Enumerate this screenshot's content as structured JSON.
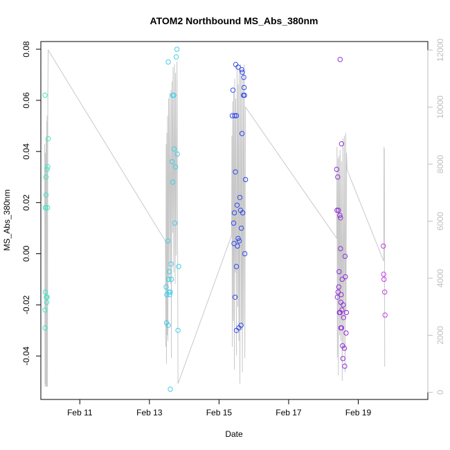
{
  "chart_data": {
    "type": "scatter",
    "title": "ATOM2 Northbound MS_Abs_380nm",
    "xlabel": "Date",
    "ylabel": "MS_Abs_380nm",
    "x_unit": "days (Feb)",
    "xlim": [
      9.88,
      21.0
    ],
    "ylim": [
      -0.057,
      0.083
    ],
    "right_ylim": [
      -250,
      12300
    ],
    "x_ticks": [
      {
        "value": 11,
        "label": "Feb 11"
      },
      {
        "value": 13,
        "label": "Feb 13"
      },
      {
        "value": 15,
        "label": "Feb 15"
      },
      {
        "value": 17,
        "label": "Feb 17"
      },
      {
        "value": 19,
        "label": "Feb 19"
      }
    ],
    "y_ticks": [
      {
        "value": -0.04,
        "label": "-0.04"
      },
      {
        "value": -0.02,
        "label": "-0.02"
      },
      {
        "value": 0.0,
        "label": "0.00"
      },
      {
        "value": 0.02,
        "label": "0.02"
      },
      {
        "value": 0.04,
        "label": "0.04"
      },
      {
        "value": 0.06,
        "label": "0.06"
      },
      {
        "value": 0.08,
        "label": "0.08"
      }
    ],
    "right_ticks": [
      {
        "value": 0,
        "label": "0"
      },
      {
        "value": 2000,
        "label": "2000"
      },
      {
        "value": 4000,
        "label": "4000"
      },
      {
        "value": 6000,
        "label": "6000"
      },
      {
        "value": 8000,
        "label": "8000"
      },
      {
        "value": 10000,
        "label": "10000"
      },
      {
        "value": 12000,
        "label": "12000"
      }
    ],
    "colors": {
      "g1": "#3be6c2",
      "g2": "#3ccfea",
      "g3": "#2f48ea",
      "g4": "#8f2fd8",
      "g5": "#c83ae6",
      "line": "#c8c8c8"
    },
    "series": [
      {
        "color_key": "g1",
        "points": [
          [
            10.0,
            0.062
          ],
          [
            10.0,
            -0.029
          ],
          [
            10.0,
            -0.022
          ],
          [
            10.01,
            0.018
          ],
          [
            10.01,
            -0.015
          ],
          [
            10.03,
            0.023
          ],
          [
            10.03,
            0.03
          ],
          [
            10.04,
            -0.017
          ],
          [
            10.05,
            -0.019
          ],
          [
            10.06,
            0.033
          ],
          [
            10.06,
            -0.017
          ],
          [
            10.07,
            0.018
          ],
          [
            10.08,
            0.034
          ],
          [
            10.09,
            0.045
          ],
          [
            10.02,
            0.018
          ]
        ]
      },
      {
        "color_key": "g2",
        "points": [
          [
            13.48,
            -0.013
          ],
          [
            13.49,
            -0.027
          ],
          [
            13.5,
            -0.016
          ],
          [
            13.53,
            0.005
          ],
          [
            13.54,
            0.075
          ],
          [
            13.54,
            -0.028
          ],
          [
            13.55,
            -0.01
          ],
          [
            13.57,
            -0.007
          ],
          [
            13.58,
            -0.016
          ],
          [
            13.6,
            -0.053
          ],
          [
            13.62,
            -0.004
          ],
          [
            13.63,
            -0.01
          ],
          [
            13.65,
            0.036
          ],
          [
            13.67,
            0.028
          ],
          [
            13.67,
            0.062
          ],
          [
            13.7,
            0.062
          ],
          [
            13.71,
            0.041
          ],
          [
            13.73,
            0.012
          ],
          [
            13.75,
            0.034
          ],
          [
            13.77,
            0.077
          ],
          [
            13.79,
            0.08
          ],
          [
            13.8,
            0.039
          ],
          [
            13.82,
            -0.03
          ],
          [
            13.84,
            -0.005
          ],
          [
            13.56,
            -0.015
          ],
          [
            13.6,
            -0.015
          ]
        ]
      },
      {
        "color_key": "g3",
        "points": [
          [
            15.38,
            0.054
          ],
          [
            15.4,
            0.064
          ],
          [
            15.42,
            0.012
          ],
          [
            15.43,
            0.004
          ],
          [
            15.44,
            0.016
          ],
          [
            15.45,
            0.054
          ],
          [
            15.46,
            -0.017
          ],
          [
            15.47,
            0.032
          ],
          [
            15.48,
            0.074
          ],
          [
            15.5,
            -0.005
          ],
          [
            15.5,
            0.054
          ],
          [
            15.52,
            0.019
          ],
          [
            15.53,
            0.003
          ],
          [
            15.55,
            0.073
          ],
          [
            15.55,
            0.006
          ],
          [
            15.57,
            -0.029
          ],
          [
            15.58,
            0.005
          ],
          [
            15.6,
            0.022
          ],
          [
            15.62,
            0.017
          ],
          [
            15.63,
            -0.028
          ],
          [
            15.64,
            0.01
          ],
          [
            15.65,
            0.072
          ],
          [
            15.66,
            0.047
          ],
          [
            15.67,
            0.071
          ],
          [
            15.68,
            0.016
          ],
          [
            15.7,
            0.062
          ],
          [
            15.71,
            0.069
          ],
          [
            15.72,
            0.065
          ],
          [
            15.73,
            0.062
          ],
          [
            15.74,
            0.0
          ],
          [
            15.76,
            0.029
          ],
          [
            15.5,
            -0.03
          ]
        ]
      },
      {
        "color_key": "g4",
        "points": [
          [
            18.38,
            0.033
          ],
          [
            18.39,
            0.017
          ],
          [
            18.4,
            -0.017
          ],
          [
            18.41,
            0.03
          ],
          [
            18.42,
            -0.015
          ],
          [
            18.43,
            0.017
          ],
          [
            18.44,
            -0.013
          ],
          [
            18.45,
            -0.007
          ],
          [
            18.46,
            -0.023
          ],
          [
            18.47,
            0.015
          ],
          [
            18.48,
            0.076
          ],
          [
            18.49,
            0.002
          ],
          [
            18.49,
            0.014
          ],
          [
            18.5,
            -0.029
          ],
          [
            18.52,
            0.043
          ],
          [
            18.53,
            -0.022
          ],
          [
            18.54,
            -0.01
          ],
          [
            18.55,
            -0.036
          ],
          [
            18.56,
            -0.041
          ],
          [
            18.57,
            -0.02
          ],
          [
            18.58,
            -0.025
          ],
          [
            18.6,
            -0.037
          ],
          [
            18.61,
            -0.044
          ],
          [
            18.62,
            -0.001
          ],
          [
            18.63,
            -0.009
          ],
          [
            18.65,
            -0.031
          ],
          [
            18.66,
            -0.023
          ],
          [
            18.48,
            -0.023
          ],
          [
            18.5,
            -0.019
          ],
          [
            18.51,
            -0.016
          ],
          [
            18.52,
            -0.029
          ]
        ]
      },
      {
        "color_key": "g5",
        "points": [
          [
            19.72,
            0.003
          ],
          [
            19.73,
            -0.008
          ],
          [
            19.74,
            -0.01
          ],
          [
            19.76,
            -0.015
          ],
          [
            19.77,
            -0.024
          ]
        ]
      }
    ],
    "right_series": {
      "color_key": "line",
      "points": [
        [
          9.99,
          8700
        ],
        [
          10.0,
          200
        ],
        [
          10.01,
          8400
        ],
        [
          10.02,
          300
        ],
        [
          10.03,
          8900
        ],
        [
          10.03,
          200
        ],
        [
          10.05,
          9500
        ],
        [
          10.05,
          200
        ],
        [
          10.06,
          9700
        ],
        [
          10.07,
          200
        ],
        [
          10.08,
          10500
        ],
        [
          10.09,
          12000
        ],
        [
          13.46,
          5300
        ],
        [
          13.47,
          1600
        ],
        [
          13.48,
          8700
        ],
        [
          13.49,
          1000
        ],
        [
          13.5,
          9100
        ],
        [
          13.51,
          2000
        ],
        [
          13.52,
          9700
        ],
        [
          13.53,
          1800
        ],
        [
          13.55,
          10300
        ],
        [
          13.56,
          4000
        ],
        [
          13.58,
          10500
        ],
        [
          13.6,
          3800
        ],
        [
          13.62,
          10600
        ],
        [
          13.63,
          1200
        ],
        [
          13.65,
          10900
        ],
        [
          13.67,
          5600
        ],
        [
          13.68,
          11400
        ],
        [
          13.7,
          4200
        ],
        [
          13.72,
          11500
        ],
        [
          13.74,
          3800
        ],
        [
          13.75,
          11200
        ],
        [
          13.77,
          4800
        ],
        [
          13.79,
          11600
        ],
        [
          13.81,
          4800
        ],
        [
          13.82,
          300
        ],
        [
          15.36,
          5500
        ],
        [
          15.37,
          9000
        ],
        [
          15.38,
          1600
        ],
        [
          15.39,
          10200
        ],
        [
          15.41,
          2500
        ],
        [
          15.42,
          10500
        ],
        [
          15.44,
          800
        ],
        [
          15.45,
          11000
        ],
        [
          15.47,
          4200
        ],
        [
          15.48,
          10300
        ],
        [
          15.5,
          1300
        ],
        [
          15.52,
          11400
        ],
        [
          15.54,
          3000
        ],
        [
          15.55,
          10800
        ],
        [
          15.57,
          1800
        ],
        [
          15.58,
          11300
        ],
        [
          15.6,
          300
        ],
        [
          15.62,
          11500
        ],
        [
          15.64,
          2200
        ],
        [
          15.65,
          11000
        ],
        [
          15.67,
          700
        ],
        [
          15.69,
          11300
        ],
        [
          15.7,
          2300
        ],
        [
          15.72,
          11500
        ],
        [
          15.74,
          1200
        ],
        [
          15.76,
          10000
        ],
        [
          18.38,
          5400
        ],
        [
          18.39,
          8600
        ],
        [
          18.4,
          1200
        ],
        [
          18.42,
          8200
        ],
        [
          18.43,
          600
        ],
        [
          18.45,
          8300
        ],
        [
          18.47,
          2000
        ],
        [
          18.48,
          8500
        ],
        [
          18.5,
          1800
        ],
        [
          18.52,
          8100
        ],
        [
          18.54,
          400
        ],
        [
          18.56,
          8900
        ],
        [
          18.58,
          1500
        ],
        [
          18.6,
          9000
        ],
        [
          18.62,
          700
        ],
        [
          18.64,
          9100
        ],
        [
          18.65,
          2800
        ],
        [
          18.66,
          8400
        ],
        [
          18.68,
          7800
        ],
        [
          19.73,
          4600
        ],
        [
          19.74,
          8600
        ],
        [
          19.75,
          8500
        ],
        [
          19.76,
          900
        ]
      ]
    }
  }
}
